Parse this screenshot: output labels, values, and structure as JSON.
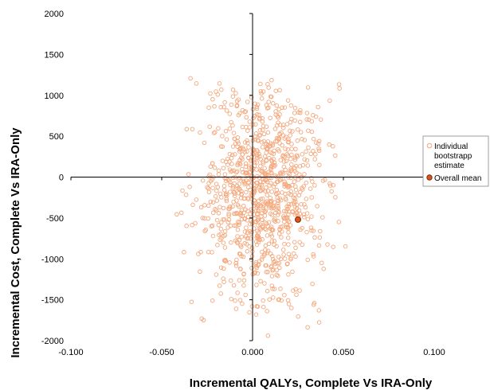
{
  "colors": {
    "bootstrap_point": "#f4a77b",
    "mean_fill": "#d9551d",
    "mean_stroke": "#7a2a08",
    "axis": "#000000",
    "legend_border": "#888888"
  },
  "chart_data": {
    "type": "scatter",
    "title": "",
    "xlabel": "Incremental QALYs, Complete Vs IRA-Only",
    "ylabel": "Incremental Cost, Complete Vs IRA-Only",
    "xlim": [
      -0.1,
      0.1
    ],
    "ylim": [
      -2000,
      2000
    ],
    "x_ticks": [
      "-0.100",
      "-0.050",
      "0.000",
      "0.050",
      "0.100"
    ],
    "y_ticks": [
      "2000",
      "1500",
      "1000",
      "500",
      "0",
      "-500",
      "-1000",
      "-1500",
      "-2000"
    ],
    "grid": false,
    "legend_position": "right",
    "legend": {
      "individual_label": [
        "Individual",
        "bootstrapp",
        "estimate"
      ],
      "mean_label": "Overall mean"
    },
    "series": [
      {
        "name": "Individual bootstrapp estimate",
        "marker": "open-circle",
        "count": 1000,
        "x_mean": 0.005,
        "x_sd": 0.017,
        "y_mean": -200,
        "y_sd": 650
      },
      {
        "name": "Overall mean",
        "marker": "filled-circle",
        "x": [
          0.025
        ],
        "y": [
          -520
        ]
      }
    ]
  }
}
